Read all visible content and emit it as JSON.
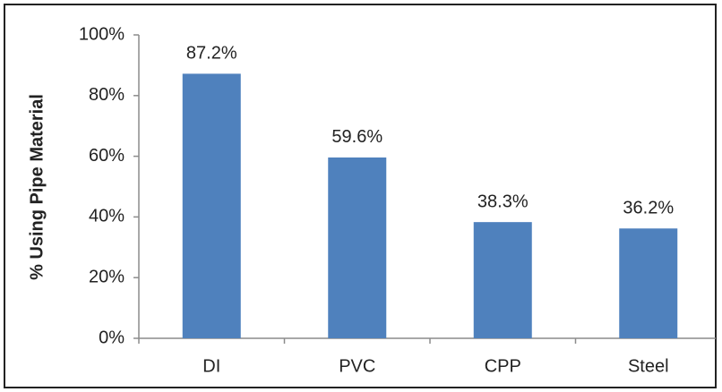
{
  "chart_data": {
    "type": "bar",
    "y_label": "% Using Pipe Material",
    "categories": [
      "DI",
      "PVC",
      "CPP",
      "Steel"
    ],
    "values": [
      87.2,
      59.6,
      38.3,
      36.2
    ],
    "value_labels": [
      "87.2%",
      "59.6%",
      "38.3%",
      "36.2%"
    ],
    "color": "#4f81bd",
    "ylim": [
      0,
      100
    ],
    "yticks": [
      {
        "value": 0,
        "label": "0%"
      },
      {
        "value": 20,
        "label": "20%"
      },
      {
        "value": 40,
        "label": "40%"
      },
      {
        "value": 60,
        "label": "60%"
      },
      {
        "value": 80,
        "label": "80%"
      },
      {
        "value": 100,
        "label": "100%"
      }
    ],
    "grid": false
  }
}
